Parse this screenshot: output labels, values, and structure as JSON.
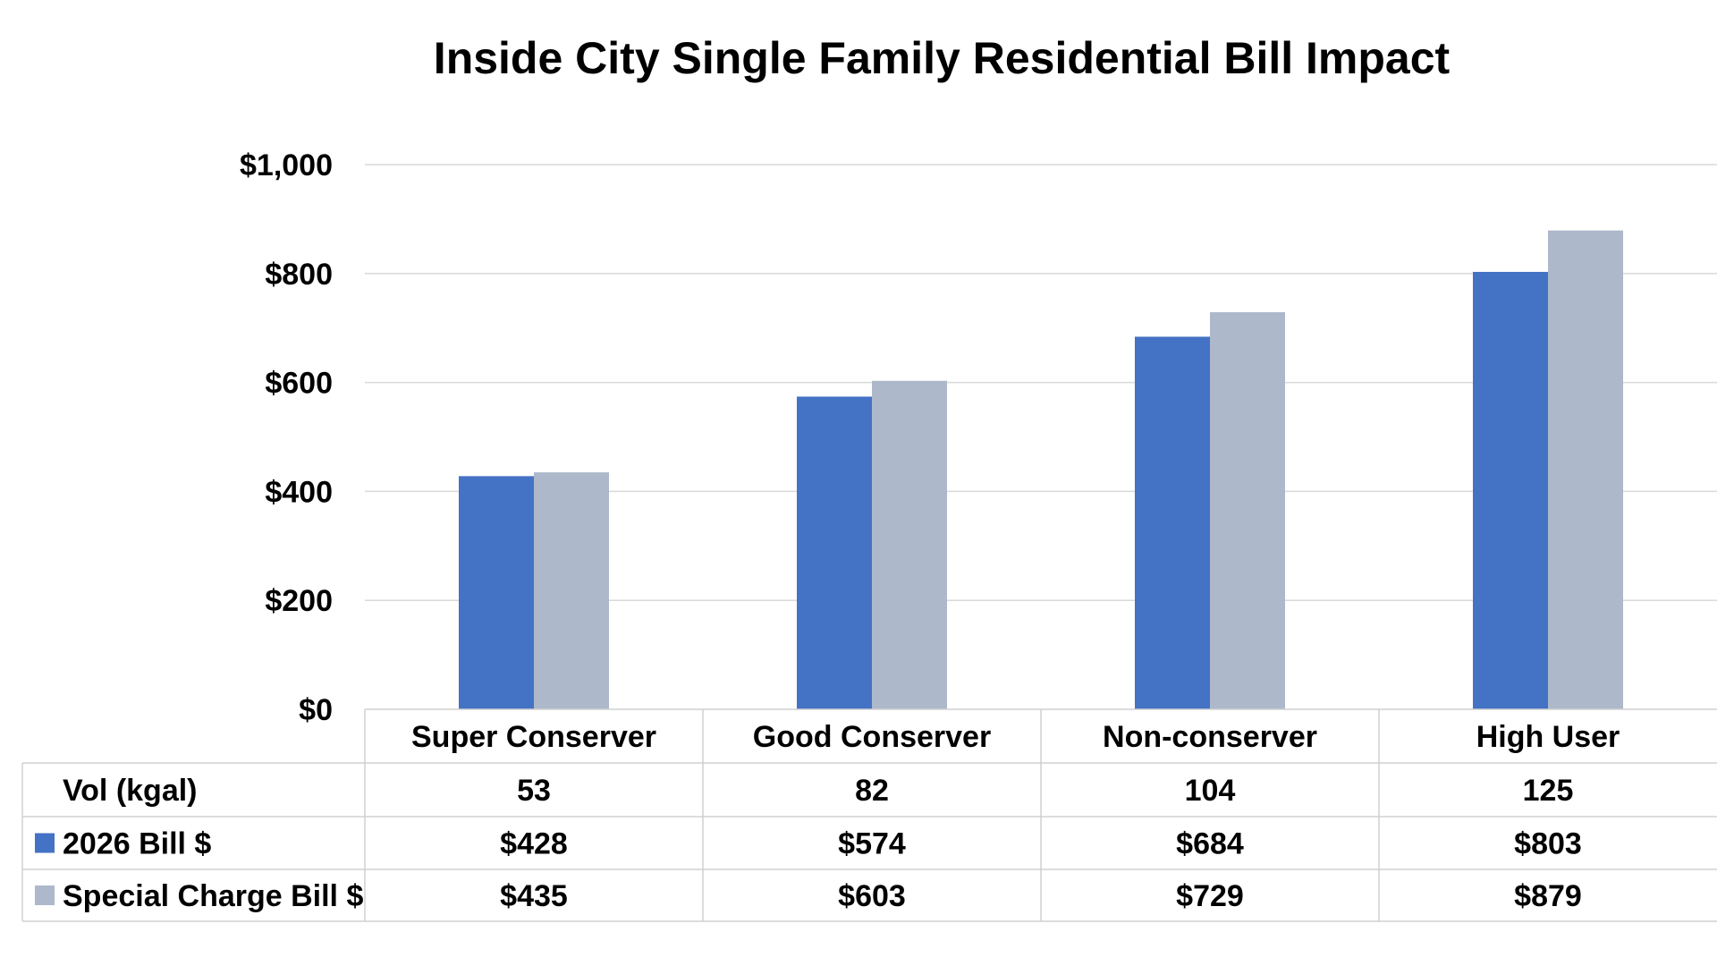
{
  "chart_data": {
    "type": "bar",
    "title": "Inside City Single Family Residential Bill Impact",
    "categories": [
      "Super Conserver",
      "Good Conserver",
      "Non-conserver",
      "High User"
    ],
    "series": [
      {
        "name": "2026 Bill $",
        "values": [
          428,
          574,
          684,
          803
        ],
        "color": "#4472c4"
      },
      {
        "name": "Special Charge Bill $",
        "values": [
          435,
          603,
          729,
          879
        ],
        "color": "#adb9ca"
      }
    ],
    "ylim": [
      0,
      1000
    ],
    "yticks": [
      0,
      200,
      400,
      600,
      800,
      1000
    ],
    "ytick_labels": [
      "$0",
      "$200",
      "$400",
      "$600",
      "$800",
      "$1,000"
    ],
    "grid": true,
    "legend": "data-table",
    "table": {
      "rows": [
        {
          "label": "Vol (kgal)",
          "cells": [
            "53",
            "82",
            "104",
            "125"
          ]
        },
        {
          "label": "2026 Bill $",
          "cells": [
            "$428",
            "$574",
            "$684",
            "$803"
          ],
          "legend_color": "#4472c4"
        },
        {
          "label": "Special Charge Bill $",
          "cells": [
            "$435",
            "$603",
            "$729",
            "$879"
          ],
          "legend_color": "#adb9ca"
        }
      ]
    }
  }
}
